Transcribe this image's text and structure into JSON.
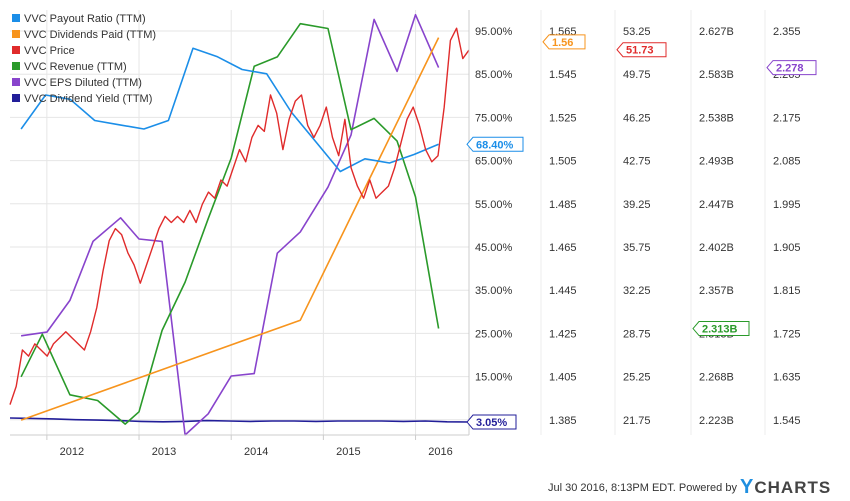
{
  "chart_data": {
    "type": "line",
    "legend": {
      "placement": "top-left",
      "entries": [
        {
          "name": "VVC Payout Ratio (TTM)",
          "color": "#1b8ee8"
        },
        {
          "name": "VVC Dividends Paid (TTM)",
          "color": "#f7941d"
        },
        {
          "name": "VVC Price",
          "color": "#e02b2b"
        },
        {
          "name": "VVC Revenue (TTM)",
          "color": "#2a9a2a"
        },
        {
          "name": "VVC EPS Diluted (TTM)",
          "color": "#8844cc"
        },
        {
          "name": "VVC Dividend Yield (TTM)",
          "color": "#221e99"
        }
      ]
    },
    "x_ticks": [
      "2012",
      "2013",
      "2014",
      "2015",
      "2016"
    ],
    "axes": [
      {
        "name": "percent",
        "ticks": [
          "95.00%",
          "85.00%",
          "75.00%",
          "65.00%",
          "55.00%",
          "45.00%",
          "35.00%",
          "25.00%",
          "15.00%",
          "5.00%"
        ],
        "range": [
          0,
          100
        ]
      },
      {
        "name": "dividends",
        "ticks": [
          "1.565",
          "1.545",
          "1.525",
          "1.505",
          "1.485",
          "1.465",
          "1.445",
          "1.425",
          "1.405",
          "1.385"
        ],
        "range": [
          1.375,
          1.575
        ]
      },
      {
        "name": "price",
        "ticks": [
          "53.25",
          "49.75",
          "46.25",
          "42.75",
          "39.25",
          "35.75",
          "32.25",
          "28.75",
          "25.25",
          "21.75"
        ],
        "range": [
          20.0,
          55.0
        ]
      },
      {
        "name": "revenue",
        "ticks": [
          "2.627B",
          "2.583B",
          "2.538B",
          "2.493B",
          "2.447B",
          "2.402B",
          "2.357B",
          "2.313B",
          "2.268B",
          "2.223B"
        ],
        "range": [
          2.2005,
          2.6495
        ]
      },
      {
        "name": "eps",
        "ticks": [
          "2.355",
          "2.265",
          "2.175",
          "2.085",
          "1.995",
          "1.905",
          "1.815",
          "1.725",
          "1.635",
          "1.545"
        ],
        "range": [
          1.5,
          2.4
        ]
      }
    ],
    "series": [
      {
        "name": "VVC Payout Ratio (TTM)",
        "color": "#1b8ee8",
        "axis": 0,
        "x_start": 2011.72,
        "x_end": 2016.25,
        "values": [
          72,
          80,
          79,
          74,
          73,
          72,
          74,
          91,
          89,
          86,
          85,
          76,
          69,
          62,
          65,
          64,
          66,
          68.4
        ]
      },
      {
        "name": "VVC Dividends Paid (TTM)",
        "color": "#f7941d",
        "axis": 1,
        "x": [
          2011.72,
          2014.75,
          2016.25
        ],
        "values": [
          1.382,
          1.429,
          1.562
        ]
      },
      {
        "name": "VVC Price",
        "color": "#e02b2b",
        "axis": 2,
        "x_start": 2011.6,
        "x_end": 2016.58,
        "values": [
          22.5,
          24.0,
          27.0,
          26.5,
          27.5,
          27.0,
          26.5,
          27.5,
          28.0,
          28.5,
          28.0,
          27.5,
          27.0,
          28.5,
          30.5,
          33.5,
          36.0,
          37.0,
          36.5,
          35.0,
          34.0,
          32.5,
          34.0,
          35.5,
          37.0,
          38.0,
          37.5,
          38.0,
          37.5,
          38.5,
          37.5,
          39.0,
          40.0,
          39.5,
          41.0,
          40.5,
          42.0,
          43.5,
          42.5,
          44.5,
          45.5,
          45.0,
          48.0,
          46.5,
          43.5,
          46.0,
          47.5,
          48.0,
          45.5,
          44.5,
          45.5,
          47.0,
          44.5,
          43.0,
          46.0,
          42.0,
          40.5,
          39.5,
          41.0,
          39.5,
          40.0,
          40.5,
          42.0,
          44.0,
          46.0,
          47.0,
          45.5,
          43.5,
          42.5,
          43.0,
          47.0,
          52.5,
          53.5,
          51.0,
          51.7
        ]
      },
      {
        "name": "VVC Revenue (TTM)",
        "color": "#2a9a2a",
        "axis": 3,
        "x": [
          2011.72,
          2011.95,
          2012.25,
          2012.55,
          2012.85,
          2013.0,
          2013.25,
          2013.5,
          2013.75,
          2014.0,
          2014.25,
          2014.5,
          2014.75,
          2015.05,
          2015.3,
          2015.55,
          2015.8,
          2016.0,
          2016.25
        ],
        "values": [
          2.262,
          2.307,
          2.243,
          2.237,
          2.212,
          2.225,
          2.311,
          2.362,
          2.429,
          2.493,
          2.59,
          2.6,
          2.635,
          2.63,
          2.523,
          2.535,
          2.511,
          2.452,
          2.313
        ]
      },
      {
        "name": "VVC EPS Diluted (TTM)",
        "color": "#8844cc",
        "axis": 4,
        "x": [
          2011.72,
          2012.0,
          2012.25,
          2012.5,
          2012.8,
          2013.0,
          2013.25,
          2013.5,
          2013.75,
          2014.0,
          2014.25,
          2014.5,
          2014.75,
          2015.05,
          2015.3,
          2015.55,
          2015.8,
          2016.0,
          2016.25
        ],
        "values": [
          1.71,
          1.718,
          1.785,
          1.91,
          1.96,
          1.915,
          1.91,
          1.5,
          1.545,
          1.625,
          1.63,
          1.885,
          1.93,
          2.025,
          2.135,
          2.38,
          2.27,
          2.39,
          2.278
        ]
      },
      {
        "name": "VVC Dividend Yield (TTM)",
        "color": "#221e99",
        "axis": 0,
        "x_start": 2011.6,
        "x_end": 2016.58,
        "values": [
          4.0,
          3.9,
          3.8,
          3.6,
          3.5,
          3.4,
          3.2,
          3.1,
          3.2,
          3.4,
          3.3,
          3.2,
          3.3,
          3.3,
          3.2,
          3.3,
          3.3,
          3.3,
          3.2,
          3.3,
          3.1,
          3.05
        ]
      }
    ],
    "last_value_tags": [
      {
        "series": "VVC Dividends Paid (TTM)",
        "text": "1.56",
        "axis": 1,
        "value": 1.56,
        "color": "#f7941d"
      },
      {
        "series": "VVC Price",
        "text": "51.73",
        "axis": 2,
        "value": 51.73,
        "color": "#e02b2b"
      },
      {
        "series": "VVC Payout Ratio (TTM)",
        "text": "68.40%",
        "axis": 0,
        "value": 68.4,
        "color": "#1b8ee8"
      },
      {
        "series": "VVC Revenue (TTM)",
        "text": "2.313B",
        "axis": 3,
        "value": 2.313,
        "color": "#2a9a2a"
      },
      {
        "series": "VVC EPS Diluted (TTM)",
        "text": "2.278",
        "axis": 4,
        "value": 2.278,
        "color": "#8844cc"
      },
      {
        "series": "VVC Dividend Yield (TTM)",
        "text": "3.05%",
        "axis": 0,
        "value": 3.05,
        "color": "#221e99"
      }
    ]
  },
  "footer": {
    "timestamp": "Jul 30 2016, 8:13PM EDT.",
    "powered_by": "Powered by",
    "brand_y": "Y",
    "brand_rest": "CHARTS"
  }
}
